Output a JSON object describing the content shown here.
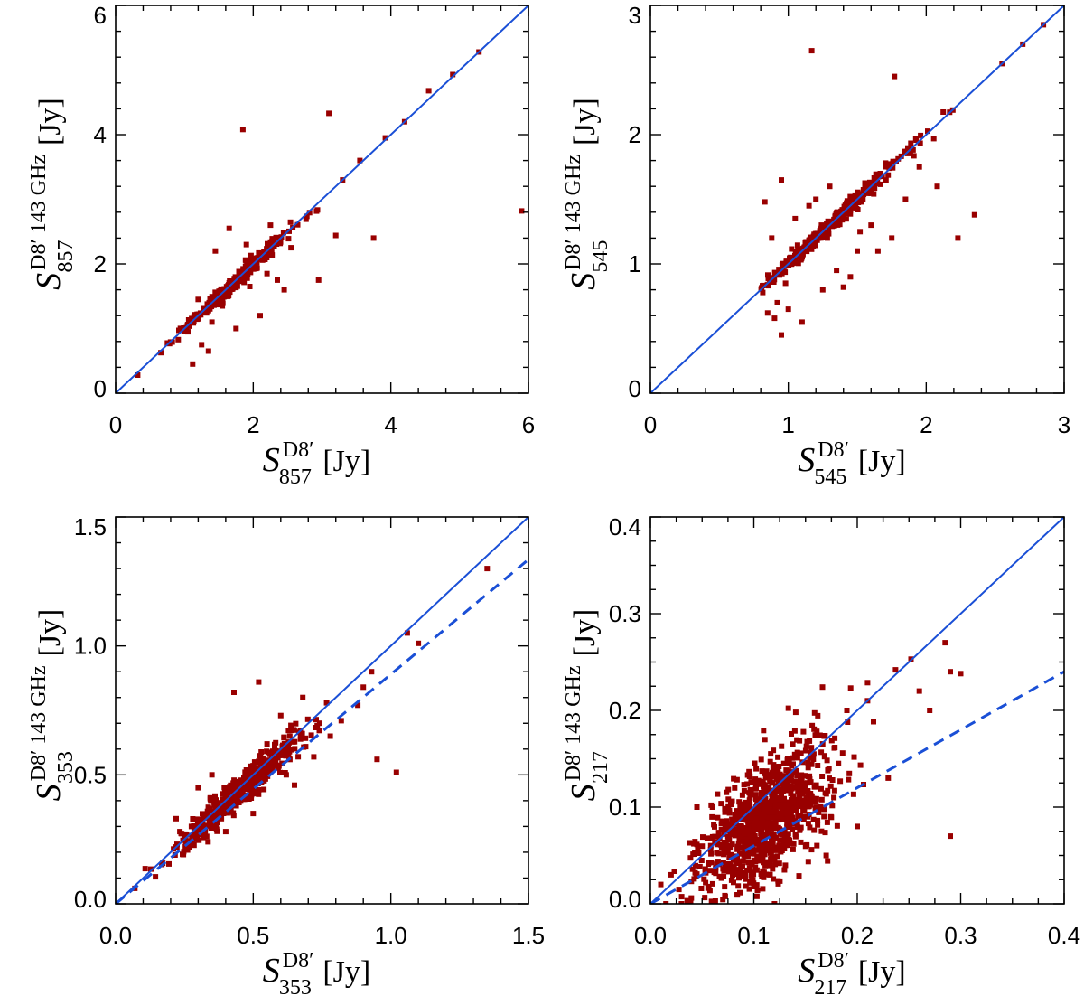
{
  "colors": {
    "points": "#990000",
    "reference_line": "#1a4fd6",
    "axes": "#000000",
    "background": "#ffffff"
  },
  "chart_data": [
    {
      "type": "scatter",
      "xlabel": {
        "symbol": "S",
        "sup": "D8′",
        "sub": "857",
        "unit": "[Jy]"
      },
      "ylabel": {
        "symbol": "S",
        "sup": "D8′ 143 GHz",
        "sub": "857",
        "unit": "[Jy]"
      },
      "xlim": [
        0,
        6
      ],
      "ylim": [
        0,
        6
      ],
      "xticks": [
        0,
        2,
        4,
        6
      ],
      "yticks": [
        0,
        2,
        4,
        6
      ],
      "xtick_labels": [
        "0",
        "2",
        "4",
        "6"
      ],
      "ytick_labels": [
        "0",
        "2",
        "4",
        "6"
      ],
      "lines": [
        {
          "style": "solid",
          "x": [
            0,
            6
          ],
          "y": [
            0,
            6
          ]
        }
      ],
      "scatter_seed": 11,
      "cluster": {
        "n": 340,
        "x_center": 1.75,
        "x_spread": 0.55,
        "x_min": 0.55,
        "x_max": 3.0,
        "slope": 1.0,
        "intercept": 0.0,
        "scatter": 0.035
      },
      "outliers": [
        [
          1.85,
          4.08
        ],
        [
          3.1,
          4.33
        ],
        [
          5.9,
          2.82
        ],
        [
          3.75,
          2.4
        ],
        [
          2.95,
          1.75
        ],
        [
          1.12,
          0.45
        ],
        [
          0.32,
          0.28
        ],
        [
          4.9,
          4.93
        ],
        [
          5.28,
          5.28
        ],
        [
          4.55,
          4.68
        ],
        [
          4.2,
          4.2
        ],
        [
          3.92,
          3.95
        ],
        [
          3.55,
          3.6
        ],
        [
          3.3,
          3.3
        ],
        [
          3.2,
          2.44
        ],
        [
          1.65,
          2.55
        ],
        [
          1.45,
          2.2
        ],
        [
          2.2,
          1.85
        ],
        [
          2.45,
          1.6
        ],
        [
          1.25,
          0.75
        ],
        [
          1.05,
          0.95
        ],
        [
          2.1,
          1.2
        ],
        [
          1.35,
          0.65
        ],
        [
          1.75,
          1.0
        ],
        [
          1.55,
          1.35
        ],
        [
          2.25,
          2.6
        ],
        [
          2.55,
          2.25
        ],
        [
          2.35,
          1.75
        ],
        [
          1.9,
          2.3
        ],
        [
          1.4,
          1.1
        ],
        [
          1.95,
          1.65
        ],
        [
          1.2,
          1.45
        ]
      ]
    },
    {
      "type": "scatter",
      "xlabel": {
        "symbol": "S",
        "sup": "D8′",
        "sub": "545",
        "unit": "[Jy]"
      },
      "ylabel": {
        "symbol": "S",
        "sup": "D8′ 143 GHz",
        "sub": "545",
        "unit": "[Jy]"
      },
      "xlim": [
        0,
        3
      ],
      "ylim": [
        0,
        3
      ],
      "xticks": [
        0,
        1,
        2,
        3
      ],
      "yticks": [
        0,
        1,
        2,
        3
      ],
      "xtick_labels": [
        "0",
        "1",
        "2",
        "3"
      ],
      "ytick_labels": [
        "0",
        "1",
        "2",
        "3"
      ],
      "lines": [
        {
          "style": "solid",
          "x": [
            0,
            3
          ],
          "y": [
            0,
            3
          ]
        }
      ],
      "scatter_seed": 23,
      "cluster": {
        "n": 380,
        "x_center": 1.3,
        "x_spread": 0.4,
        "x_min": 0.8,
        "x_max": 2.95,
        "slope": 1.0,
        "intercept": 0.0,
        "scatter": 0.02
      },
      "outliers": [
        [
          1.17,
          2.65
        ],
        [
          1.77,
          2.45
        ],
        [
          2.35,
          1.38
        ],
        [
          2.23,
          1.2
        ],
        [
          2.08,
          1.6
        ],
        [
          0.83,
          1.48
        ],
        [
          0.95,
          1.65
        ],
        [
          0.95,
          0.45
        ],
        [
          0.9,
          0.58
        ],
        [
          0.85,
          0.62
        ],
        [
          0.92,
          0.7
        ],
        [
          1.0,
          0.65
        ],
        [
          1.1,
          0.55
        ],
        [
          1.3,
          1.6
        ],
        [
          1.45,
          0.9
        ],
        [
          1.35,
          0.95
        ],
        [
          1.5,
          1.1
        ],
        [
          1.6,
          1.3
        ],
        [
          1.85,
          1.5
        ],
        [
          1.75,
          1.2
        ],
        [
          0.88,
          1.2
        ],
        [
          1.05,
          1.35
        ],
        [
          1.2,
          1.5
        ],
        [
          1.4,
          0.82
        ],
        [
          1.25,
          0.8
        ],
        [
          1.65,
          1.1
        ],
        [
          1.15,
          1.45
        ],
        [
          0.98,
          0.85
        ],
        [
          1.52,
          1.25
        ],
        [
          1.95,
          1.75
        ],
        [
          2.7,
          2.7
        ],
        [
          2.85,
          2.85
        ],
        [
          2.55,
          2.55
        ]
      ]
    },
    {
      "type": "scatter",
      "xlabel": {
        "symbol": "S",
        "sup": "D8′",
        "sub": "353",
        "unit": "[Jy]"
      },
      "ylabel": {
        "symbol": "S",
        "sup": "D8′ 143 GHz",
        "sub": "353",
        "unit": "[Jy]"
      },
      "xlim": [
        0,
        1.5
      ],
      "ylim": [
        0,
        1.5
      ],
      "xticks": [
        0,
        0.5,
        1.0,
        1.5
      ],
      "yticks": [
        0,
        0.5,
        1.0,
        1.5
      ],
      "xtick_labels": [
        "0.0",
        "0.5",
        "1.0",
        "1.5"
      ],
      "ytick_labels": [
        "0.0",
        "0.5",
        "1.0",
        "1.5"
      ],
      "lines": [
        {
          "style": "solid",
          "x": [
            0,
            1.5
          ],
          "y": [
            0,
            1.5
          ]
        },
        {
          "style": "dashed",
          "x": [
            0,
            1.5
          ],
          "y": [
            0,
            1.335
          ]
        }
      ],
      "scatter_seed": 37,
      "cluster": {
        "n": 520,
        "x_center": 0.45,
        "x_spread": 0.16,
        "x_min": 0.07,
        "x_max": 1.05,
        "slope": 0.97,
        "intercept": 0.0,
        "scatter": 0.022
      },
      "outliers": [
        [
          0.43,
          0.82
        ],
        [
          0.52,
          0.86
        ],
        [
          1.35,
          1.3
        ],
        [
          1.06,
          1.05
        ],
        [
          1.1,
          1.01
        ],
        [
          0.93,
          0.9
        ],
        [
          0.95,
          0.56
        ],
        [
          1.02,
          0.51
        ],
        [
          0.9,
          0.84
        ],
        [
          0.88,
          0.77
        ],
        [
          0.72,
          0.57
        ],
        [
          0.65,
          0.46
        ],
        [
          0.6,
          0.73
        ],
        [
          0.68,
          0.8
        ],
        [
          0.3,
          0.45
        ],
        [
          0.22,
          0.33
        ],
        [
          0.5,
          0.35
        ],
        [
          0.4,
          0.28
        ],
        [
          0.78,
          0.65
        ],
        [
          0.82,
          0.71
        ],
        [
          0.35,
          0.5
        ],
        [
          0.55,
          0.62
        ],
        [
          0.62,
          0.5
        ],
        [
          0.07,
          0.06
        ]
      ]
    },
    {
      "type": "scatter",
      "xlabel": {
        "symbol": "S",
        "sup": "D8′",
        "sub": "217",
        "unit": "[Jy]"
      },
      "ylabel": {
        "symbol": "S",
        "sup": "D8′ 143 GHz",
        "sub": "217",
        "unit": "[Jy]"
      },
      "xlim": [
        0,
        0.4
      ],
      "ylim": [
        0,
        0.4
      ],
      "xticks": [
        0,
        0.1,
        0.2,
        0.3,
        0.4
      ],
      "yticks": [
        0,
        0.1,
        0.2,
        0.3,
        0.4
      ],
      "xtick_labels": [
        "0.0",
        "0.1",
        "0.2",
        "0.3",
        "0.4"
      ],
      "ytick_labels": [
        "0.0",
        "0.1",
        "0.2",
        "0.3",
        "0.4"
      ],
      "lines": [
        {
          "style": "solid",
          "x": [
            0,
            0.4
          ],
          "y": [
            0,
            0.4
          ]
        },
        {
          "style": "dashed",
          "x": [
            0,
            0.4
          ],
          "y": [
            0,
            0.24
          ]
        }
      ],
      "scatter_seed": 53,
      "cluster": {
        "n": 1000,
        "x_center": 0.11,
        "x_spread": 0.045,
        "x_min": 0.01,
        "x_max": 0.3,
        "slope": 0.78,
        "intercept": 0.0,
        "scatter": 0.022
      },
      "outliers": [
        [
          0.285,
          0.27
        ],
        [
          0.29,
          0.24
        ],
        [
          0.3,
          0.238
        ],
        [
          0.252,
          0.253
        ],
        [
          0.237,
          0.242
        ],
        [
          0.29,
          0.07
        ],
        [
          0.12,
          0.0
        ],
        [
          0.02,
          0.03
        ],
        [
          0.01,
          0.02
        ],
        [
          0.045,
          0.1
        ],
        [
          0.06,
          0.1
        ],
        [
          0.19,
          0.2
        ],
        [
          0.21,
          0.21
        ],
        [
          0.26,
          0.22
        ],
        [
          0.27,
          0.2
        ],
        [
          0.23,
          0.13
        ],
        [
          0.2,
          0.08
        ],
        [
          0.17,
          0.05
        ],
        [
          0.015,
          0.0
        ],
        [
          0.03,
          0.0
        ]
      ]
    }
  ]
}
